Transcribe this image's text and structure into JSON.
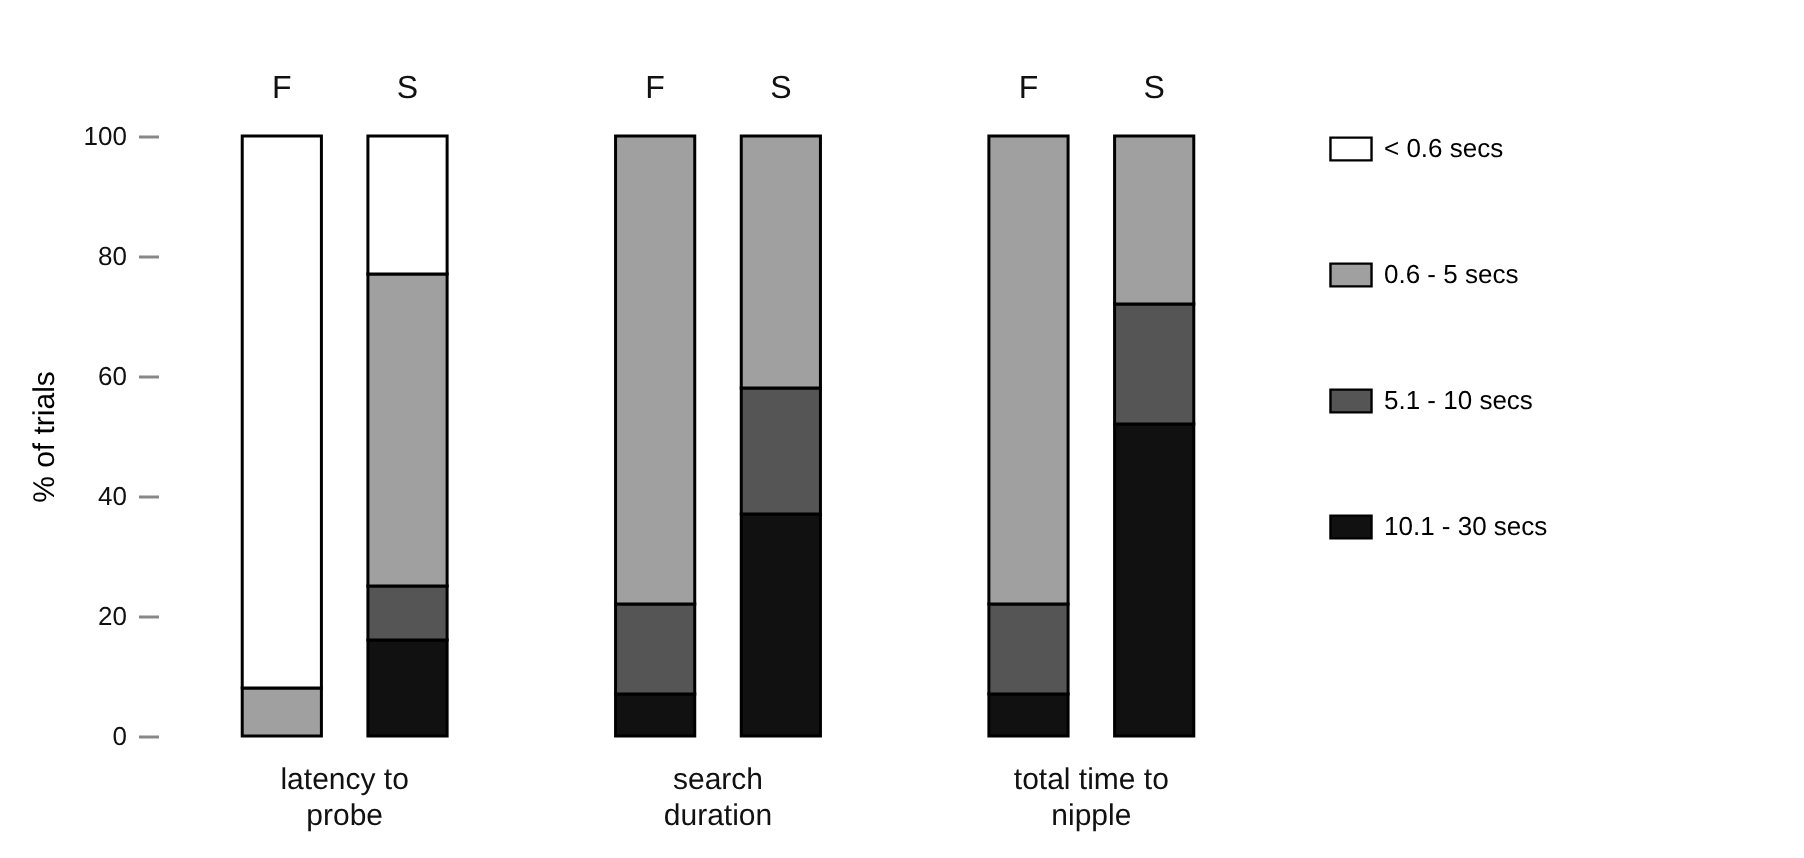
{
  "chart_data": {
    "type": "bar",
    "stacked": true,
    "categories": [
      "F",
      "S",
      "F",
      "S",
      "F",
      "S"
    ],
    "annotations": [
      "latency to probe",
      "search duration",
      "total time to nipple"
    ],
    "ylabel": "% of trials",
    "ylim": [
      0,
      100
    ],
    "yticks": [
      0,
      20,
      40,
      60,
      80,
      100
    ],
    "grid": false,
    "legend": "right",
    "series": [
      {
        "name": "10.1 - 30 secs",
        "color": "#111111",
        "values": [
          0,
          16,
          7,
          37,
          7,
          52
        ]
      },
      {
        "name": "5.1 - 10 secs",
        "color": "#555555",
        "values": [
          0,
          9,
          15,
          21,
          15,
          20
        ]
      },
      {
        "name": "0.6 - 5 secs",
        "color": "#a0a0a0",
        "values": [
          8,
          52,
          78,
          42,
          78,
          28
        ]
      },
      {
        "name": "< 0.6 secs",
        "color": "#ffffff",
        "values": [
          92,
          23,
          0,
          0,
          0,
          0
        ]
      }
    ]
  }
}
